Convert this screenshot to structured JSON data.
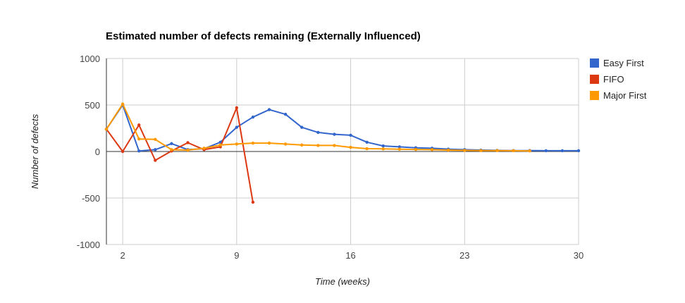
{
  "chart_data": {
    "type": "line",
    "title": "Estimated number of defects remaining (Externally Influenced)",
    "xlabel": "Time (weeks)",
    "ylabel": "Number of defects",
    "xlim": [
      1,
      30
    ],
    "ylim": [
      -1000,
      1000
    ],
    "x_ticks": [
      2,
      9,
      16,
      23,
      30
    ],
    "y_ticks": [
      -1000,
      -500,
      0,
      500,
      1000
    ],
    "grid": true,
    "legend_position": "right",
    "series": [
      {
        "name": "Easy First",
        "color": "#3366cc",
        "x": [
          1,
          2,
          3,
          4,
          5,
          6,
          7,
          8,
          9,
          10,
          11,
          12,
          13,
          14,
          15,
          16,
          17,
          18,
          19,
          20,
          21,
          22,
          23,
          24,
          25,
          26,
          27,
          28,
          29,
          30
        ],
        "y": [
          240,
          500,
          5,
          20,
          85,
          20,
          30,
          100,
          260,
          370,
          450,
          400,
          260,
          205,
          185,
          175,
          100,
          60,
          50,
          40,
          35,
          25,
          20,
          15,
          12,
          10,
          10,
          8,
          8,
          8
        ]
      },
      {
        "name": "FIFO",
        "color": "#dc3912",
        "x": [
          1,
          2,
          3,
          4,
          5,
          6,
          7,
          8,
          9,
          10
        ],
        "y": [
          240,
          0,
          285,
          -95,
          5,
          95,
          20,
          50,
          470,
          -545
        ]
      },
      {
        "name": "Major First",
        "color": "#ff9900",
        "x": [
          1,
          2,
          3,
          4,
          5,
          6,
          7,
          8,
          9,
          10,
          11,
          12,
          13,
          14,
          15,
          16,
          17,
          18,
          19,
          20,
          21,
          22,
          23,
          24,
          25,
          26,
          27
        ],
        "y": [
          240,
          510,
          135,
          130,
          20,
          15,
          35,
          70,
          80,
          90,
          90,
          80,
          70,
          65,
          65,
          45,
          30,
          28,
          25,
          22,
          20,
          15,
          12,
          10,
          10,
          8,
          6
        ]
      }
    ]
  }
}
